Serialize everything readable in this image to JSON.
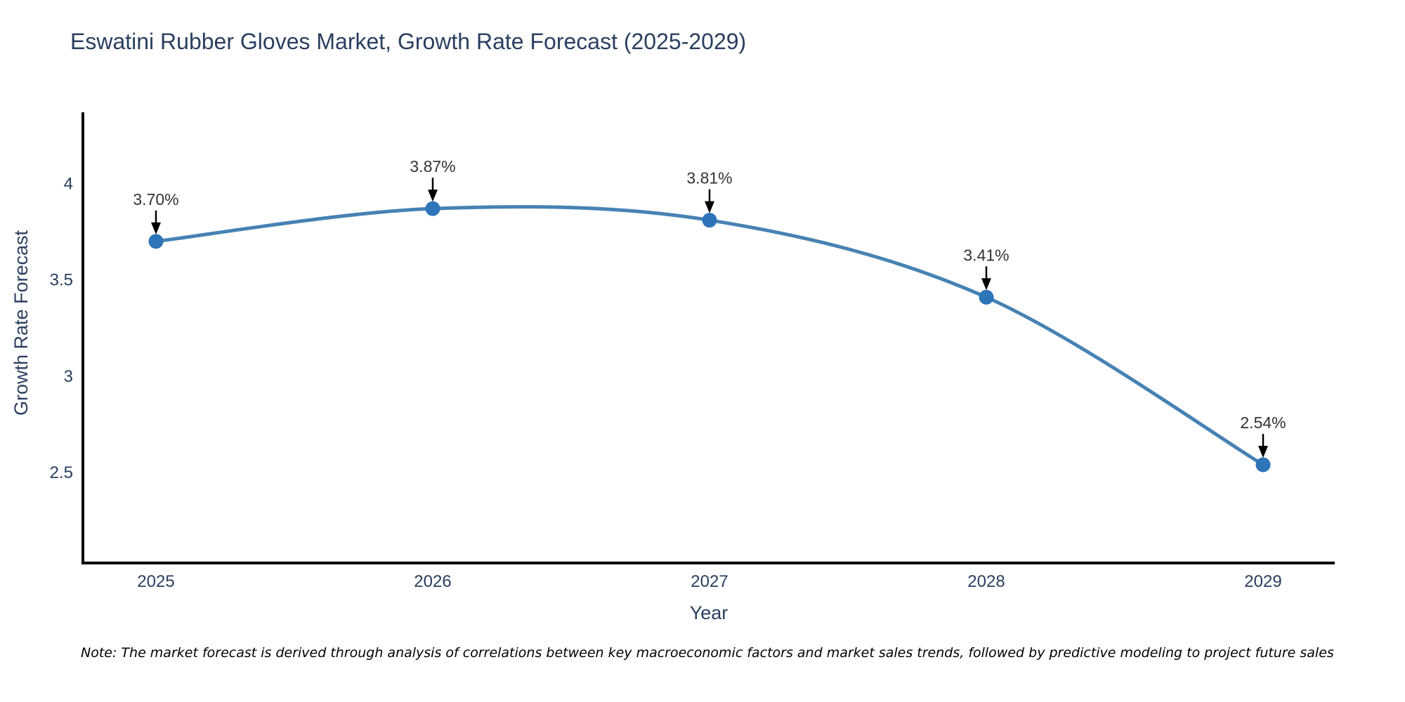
{
  "chart_data": {
    "type": "line",
    "title": "Eswatini Rubber Gloves Market, Growth Rate Forecast (2025-2029)",
    "x": [
      2025,
      2026,
      2027,
      2028,
      2029
    ],
    "y": [
      3.7,
      3.87,
      3.81,
      3.41,
      2.54
    ],
    "point_labels": [
      "3.70%",
      "3.87%",
      "3.81%",
      "3.41%",
      "2.54%"
    ],
    "xlabel": "Year",
    "ylabel": "Growth Rate Forecast",
    "xticks": [
      "2025",
      "2026",
      "2027",
      "2028",
      "2029"
    ],
    "yticks": [
      2.5,
      3,
      3.5,
      4
    ],
    "ylim": [
      2.03,
      4.37
    ],
    "grid": false,
    "legend": "none",
    "line_shape": "spline",
    "colors": {
      "line": "#4682b4",
      "marker": "#2d74b9",
      "axis_line": "#000000",
      "arrow": "#000000",
      "title_text": "#2a3f5f",
      "tick_text": "#2a3f5f",
      "annotation_text": "#333333"
    }
  },
  "note": "Note: The market forecast is derived through analysis of correlations between key macroeconomic factors and market sales trends, followed by predictive modeling to project future sales"
}
